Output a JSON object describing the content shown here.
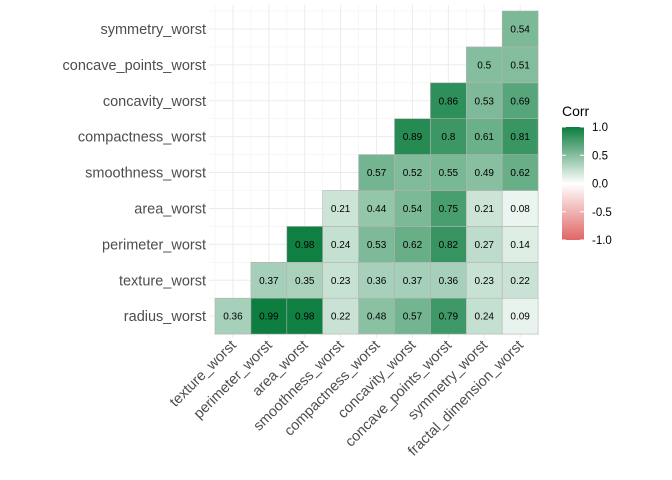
{
  "chart_data": {
    "type": "heatmap",
    "variables": [
      "radius_worst",
      "texture_worst",
      "perimeter_worst",
      "area_worst",
      "smoothness_worst",
      "compactness_worst",
      "concavity_worst",
      "concave_points_worst",
      "symmetry_worst",
      "fractal_dimension_worst"
    ],
    "y_labels": [
      "radius_worst",
      "texture_worst",
      "perimeter_worst",
      "area_worst",
      "smoothness_worst",
      "compactness_worst",
      "concavity_worst",
      "concave_points_worst",
      "symmetry_worst"
    ],
    "x_labels": [
      "texture_worst",
      "perimeter_worst",
      "area_worst",
      "smoothness_worst",
      "compactness_worst",
      "concavity_worst",
      "concave_points_worst",
      "symmetry_worst",
      "fractal_dimension_worst"
    ],
    "cells": [
      {
        "row": "radius_worst",
        "col": "texture_worst",
        "value": 0.36
      },
      {
        "row": "radius_worst",
        "col": "perimeter_worst",
        "value": 0.99
      },
      {
        "row": "radius_worst",
        "col": "area_worst",
        "value": 0.98
      },
      {
        "row": "radius_worst",
        "col": "smoothness_worst",
        "value": 0.22
      },
      {
        "row": "radius_worst",
        "col": "compactness_worst",
        "value": 0.48
      },
      {
        "row": "radius_worst",
        "col": "concavity_worst",
        "value": 0.57
      },
      {
        "row": "radius_worst",
        "col": "concave_points_worst",
        "value": 0.79
      },
      {
        "row": "radius_worst",
        "col": "symmetry_worst",
        "value": 0.24
      },
      {
        "row": "radius_worst",
        "col": "fractal_dimension_worst",
        "value": 0.09
      },
      {
        "row": "texture_worst",
        "col": "perimeter_worst",
        "value": 0.37
      },
      {
        "row": "texture_worst",
        "col": "area_worst",
        "value": 0.35
      },
      {
        "row": "texture_worst",
        "col": "smoothness_worst",
        "value": 0.23
      },
      {
        "row": "texture_worst",
        "col": "compactness_worst",
        "value": 0.36
      },
      {
        "row": "texture_worst",
        "col": "concavity_worst",
        "value": 0.37
      },
      {
        "row": "texture_worst",
        "col": "concave_points_worst",
        "value": 0.36
      },
      {
        "row": "texture_worst",
        "col": "symmetry_worst",
        "value": 0.23
      },
      {
        "row": "texture_worst",
        "col": "fractal_dimension_worst",
        "value": 0.22
      },
      {
        "row": "perimeter_worst",
        "col": "area_worst",
        "value": 0.98
      },
      {
        "row": "perimeter_worst",
        "col": "smoothness_worst",
        "value": 0.24
      },
      {
        "row": "perimeter_worst",
        "col": "compactness_worst",
        "value": 0.53
      },
      {
        "row": "perimeter_worst",
        "col": "concavity_worst",
        "value": 0.62
      },
      {
        "row": "perimeter_worst",
        "col": "concave_points_worst",
        "value": 0.82
      },
      {
        "row": "perimeter_worst",
        "col": "symmetry_worst",
        "value": 0.27
      },
      {
        "row": "perimeter_worst",
        "col": "fractal_dimension_worst",
        "value": 0.14
      },
      {
        "row": "area_worst",
        "col": "smoothness_worst",
        "value": 0.21
      },
      {
        "row": "area_worst",
        "col": "compactness_worst",
        "value": 0.44
      },
      {
        "row": "area_worst",
        "col": "concavity_worst",
        "value": 0.54
      },
      {
        "row": "area_worst",
        "col": "concave_points_worst",
        "value": 0.75
      },
      {
        "row": "area_worst",
        "col": "symmetry_worst",
        "value": 0.21
      },
      {
        "row": "area_worst",
        "col": "fractal_dimension_worst",
        "value": 0.08
      },
      {
        "row": "smoothness_worst",
        "col": "compactness_worst",
        "value": 0.57
      },
      {
        "row": "smoothness_worst",
        "col": "concavity_worst",
        "value": 0.52
      },
      {
        "row": "smoothness_worst",
        "col": "concave_points_worst",
        "value": 0.55
      },
      {
        "row": "smoothness_worst",
        "col": "symmetry_worst",
        "value": 0.49
      },
      {
        "row": "smoothness_worst",
        "col": "fractal_dimension_worst",
        "value": 0.62
      },
      {
        "row": "compactness_worst",
        "col": "concavity_worst",
        "value": 0.89
      },
      {
        "row": "compactness_worst",
        "col": "concave_points_worst",
        "value": 0.8
      },
      {
        "row": "compactness_worst",
        "col": "symmetry_worst",
        "value": 0.61
      },
      {
        "row": "compactness_worst",
        "col": "fractal_dimension_worst",
        "value": 0.81
      },
      {
        "row": "concavity_worst",
        "col": "concave_points_worst",
        "value": 0.86
      },
      {
        "row": "concavity_worst",
        "col": "symmetry_worst",
        "value": 0.53
      },
      {
        "row": "concavity_worst",
        "col": "fractal_dimension_worst",
        "value": 0.69
      },
      {
        "row": "concave_points_worst",
        "col": "symmetry_worst",
        "value": 0.5
      },
      {
        "row": "concave_points_worst",
        "col": "fractal_dimension_worst",
        "value": 0.51
      },
      {
        "row": "symmetry_worst",
        "col": "fractal_dimension_worst",
        "value": 0.54
      }
    ],
    "legend": {
      "title": "Corr",
      "ticks": [
        "1.0",
        "0.5",
        "0.0",
        "-0.5",
        "-1.0"
      ],
      "tick_values": [
        1.0,
        0.5,
        0.0,
        -0.5,
        -1.0
      ],
      "range": [
        -1.0,
        1.0
      ],
      "placement": "right"
    },
    "color_scale": {
      "low": "#e06666",
      "mid": "#ffffff",
      "high": "#0b7d3e"
    },
    "grid": true
  }
}
